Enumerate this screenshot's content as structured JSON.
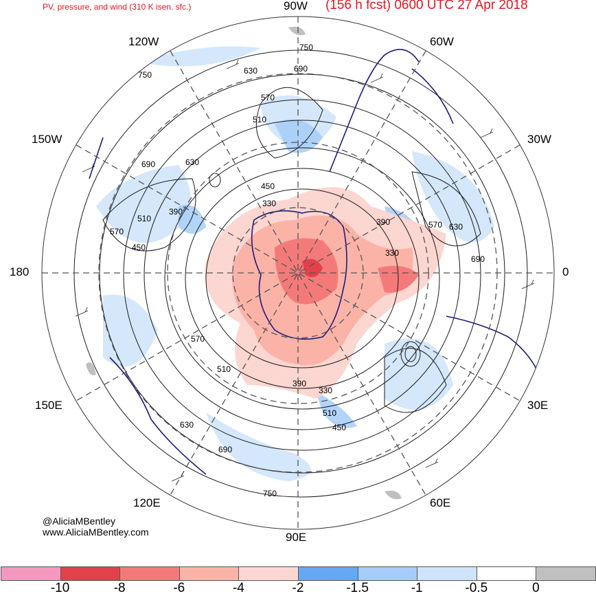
{
  "header": {
    "left_title": "PV, pressure, and wind (310 K isen. sfc.)",
    "right_title": "(156 h fcst) 0600 UTC 27 Apr 2018"
  },
  "map": {
    "projection": "north polar stereographic",
    "longitude_labels": {
      "top": "90W",
      "upper_left": "120W",
      "upper_right": "60W",
      "left_upper": "150W",
      "right_upper": "30W",
      "left": "180",
      "right": "0",
      "left_lower": "150E",
      "right_lower": "30E",
      "lower_left": "120E",
      "lower_right": "60E",
      "bottom": "90E"
    },
    "contour_labels": [
      "750",
      "630",
      "690",
      "570",
      "510",
      "450",
      "390",
      "330",
      "690",
      "630",
      "570",
      "510",
      "450",
      "390",
      "330",
      "750",
      "690",
      "630",
      "570",
      "510",
      "450",
      "390",
      "330",
      "510",
      "570",
      "630",
      "690",
      "750"
    ],
    "colors": {
      "coast": "#1a1a7a",
      "contour": "#1a1a1a",
      "grid": "#555555"
    }
  },
  "credits": {
    "handle": "@AliciaMBentley",
    "site": "www.AliciaMBentley.com"
  },
  "colorbar": {
    "labels": [
      "-10",
      "-8",
      "-6",
      "-4",
      "-2",
      "-1.5",
      "-1",
      "-0.5",
      "0"
    ],
    "colors": [
      "#f598c0",
      "#e2414a",
      "#f47a7a",
      "#fbb3a8",
      "#fcd6d0",
      "#64a8f5",
      "#a4cdf8",
      "#cfe4fb",
      "#ffffff",
      "#c0c0c0"
    ]
  }
}
